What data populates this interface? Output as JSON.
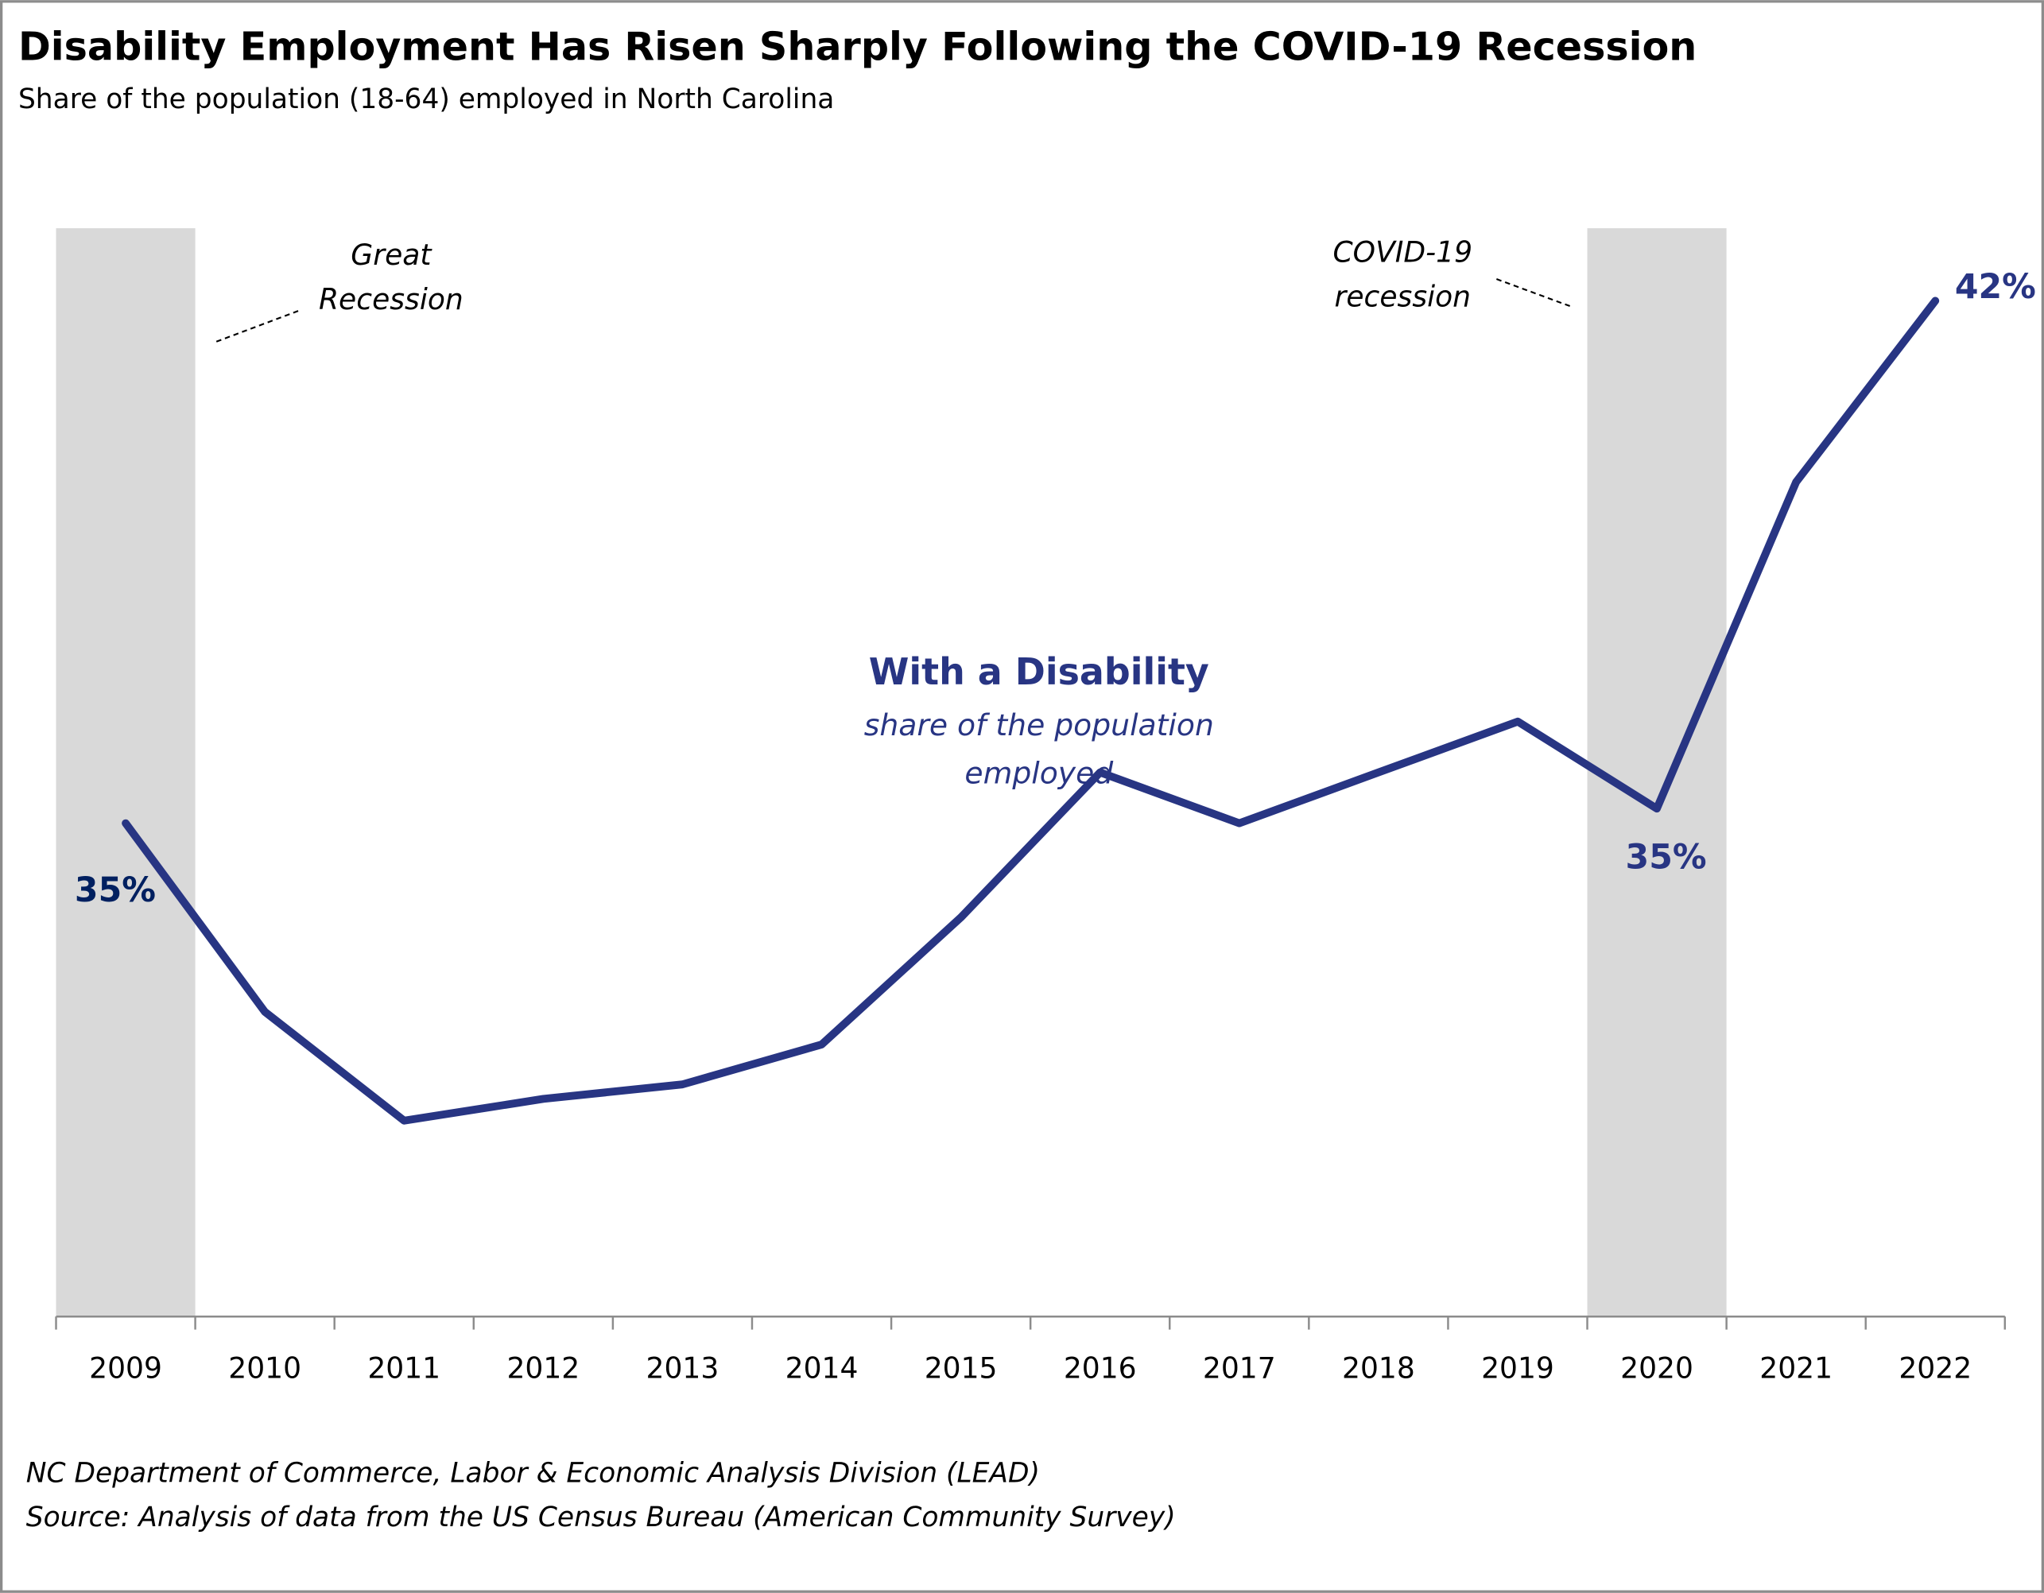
{
  "chart_data": {
    "type": "line",
    "title": "Disability Employment Has Risen Sharply Following the COVID-19 Recession",
    "subtitle": "Share of the population (18-64) employed in North Carolina",
    "categories": [
      "2009",
      "2010",
      "2011",
      "2012",
      "2013",
      "2014",
      "2015",
      "2016",
      "2017",
      "2018",
      "2019",
      "2020",
      "2021",
      "2022"
    ],
    "series": [
      {
        "name": "With a Disability",
        "name_sub": "share of the population employed",
        "name_sub_lines": [
          "share of the population",
          "employed"
        ],
        "values": [
          34.8,
          32.2,
          30.7,
          31.0,
          31.2,
          31.75,
          33.5,
          35.5,
          34.8,
          35.5,
          36.2,
          35.0,
          39.5,
          42.0
        ],
        "color": "#283583"
      }
    ],
    "data_labels": [
      {
        "category": "2009",
        "text": "35%",
        "color": "#002060"
      },
      {
        "category": "2020",
        "text": "35%",
        "color": "#283583"
      },
      {
        "category": "2022",
        "text": "42%",
        "color": "#283583"
      }
    ],
    "shaded_periods": [
      {
        "category": "2009",
        "label_lines": [
          "Great",
          "Recession"
        ],
        "color": "#d9d9d9"
      },
      {
        "category": "2020",
        "label_lines": [
          "COVID-19",
          "recession"
        ],
        "color": "#d9d9d9"
      }
    ],
    "ylim": [
      28.0,
      43.0
    ],
    "yaxis_visible": false,
    "grid": false,
    "legend": "inline-center",
    "xlabel": "",
    "ylabel": "",
    "footnotes": [
      "NC Department of Commerce, Labor & Economic Analysis Division (LEAD)",
      "Source: Analysis of data from the US Census Bureau (American Community Survey)"
    ]
  }
}
